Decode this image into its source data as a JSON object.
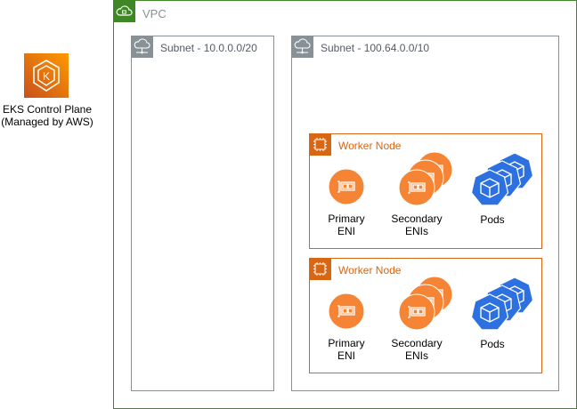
{
  "control_plane": {
    "line1": "EKS Control Plane",
    "line2": "(Managed by AWS)",
    "icon": "eks-icon"
  },
  "vpc": {
    "label": "VPC",
    "color": "#3f8624",
    "icon": "cloud-lock-icon"
  },
  "subnets": [
    {
      "label": "Subnet - 10.0.0.0/20",
      "icon": "subnet-icon",
      "color": "#879196"
    },
    {
      "label": "Subnet - 100.64.0.0/10",
      "icon": "subnet-icon",
      "color": "#879196"
    }
  ],
  "worker_nodes": [
    {
      "label": "Worker Node",
      "primary": [
        "Primary",
        "ENI"
      ],
      "secondary": [
        "Secondary",
        "ENIs"
      ],
      "pods": "Pods"
    },
    {
      "label": "Worker Node",
      "primary": [
        "Primary",
        "ENI"
      ],
      "secondary": [
        "Secondary",
        "ENIs"
      ],
      "pods": "Pods"
    }
  ],
  "colors": {
    "orange": "#d86613",
    "eni": "#f58534",
    "pod": "#2d70e0"
  }
}
